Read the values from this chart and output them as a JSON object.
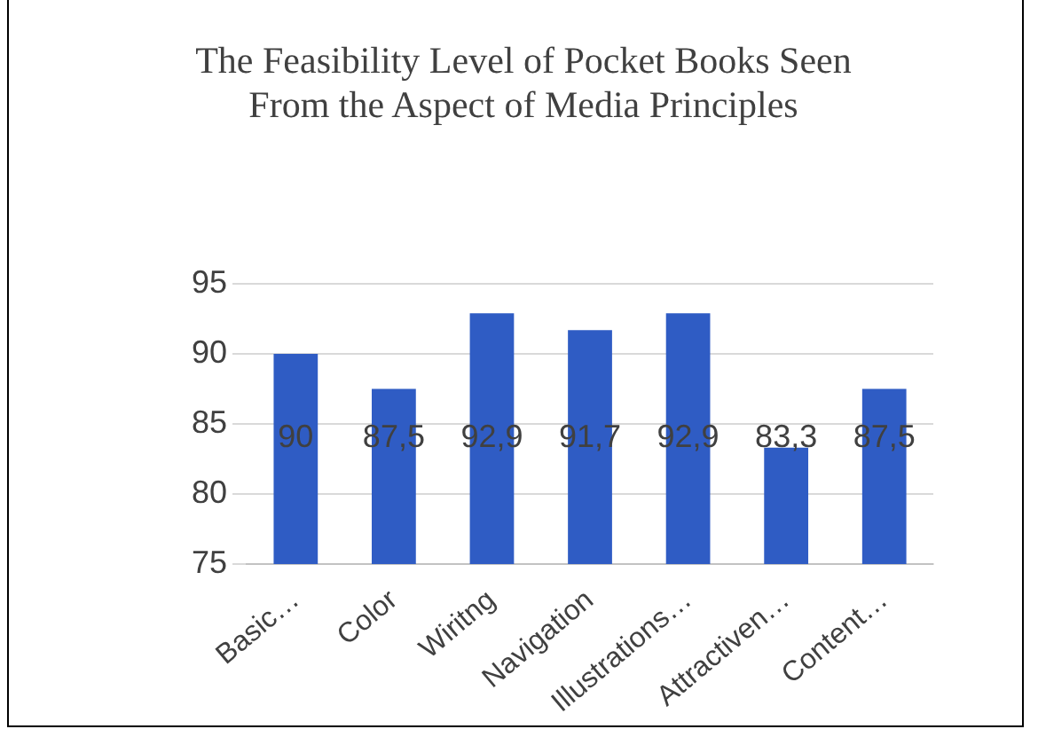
{
  "chart_data": {
    "type": "bar",
    "title": "The Feasibility Level of Pocket Books Seen From the Aspect of Media Principles",
    "categories": [
      "Basic…",
      "Color",
      "Wiritng",
      "Navigation",
      "Illustrations…",
      "Attractiven…",
      "Content…"
    ],
    "values": [
      90,
      87.5,
      92.9,
      91.7,
      92.9,
      83.3,
      87.5
    ],
    "value_labels": [
      "90",
      "87,5",
      "92,9",
      "91,7",
      "92,9",
      "83,3",
      "87,5"
    ],
    "color": "#2f5cc4",
    "ylim": [
      75,
      95
    ],
    "yticks": [
      75,
      80,
      85,
      90,
      95
    ],
    "grid": "y",
    "legend": false
  }
}
